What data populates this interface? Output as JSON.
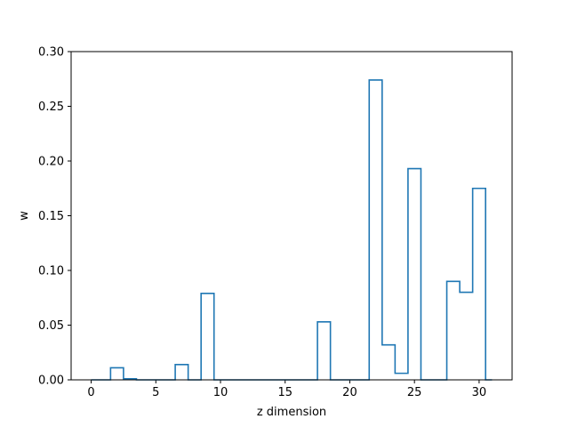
{
  "chart_data": {
    "type": "step",
    "title": "",
    "xlabel": "z dimension",
    "ylabel": "w",
    "xlim": [
      -1.55,
      32.55
    ],
    "ylim": [
      0,
      0.3
    ],
    "xticks": [
      0,
      5,
      10,
      15,
      20,
      25,
      30
    ],
    "yticks": [
      0.0,
      0.05,
      0.1,
      0.15,
      0.2,
      0.25,
      0.3
    ],
    "xtick_labels": [
      "0",
      "5",
      "10",
      "15",
      "20",
      "25",
      "30"
    ],
    "ytick_labels": [
      "0.00",
      "0.05",
      "0.10",
      "0.15",
      "0.20",
      "0.25",
      "0.30"
    ],
    "grid": false,
    "line_color": "#1f77b4",
    "x": [
      0,
      1,
      2,
      3,
      4,
      5,
      6,
      7,
      8,
      9,
      10,
      11,
      12,
      13,
      14,
      15,
      16,
      17,
      18,
      19,
      20,
      21,
      22,
      23,
      24,
      25,
      26,
      27,
      28,
      29,
      30,
      31
    ],
    "values": [
      0.0,
      0.0,
      0.011,
      0.001,
      0.0,
      0.0,
      0.0,
      0.014,
      0.0,
      0.079,
      0.0,
      0.0,
      0.0,
      0.0,
      0.0,
      0.0,
      0.0,
      0.0,
      0.053,
      0.0,
      0.0,
      0.0,
      0.274,
      0.032,
      0.006,
      0.193,
      0.0,
      0.0,
      0.09,
      0.08,
      0.175,
      0.0
    ]
  }
}
